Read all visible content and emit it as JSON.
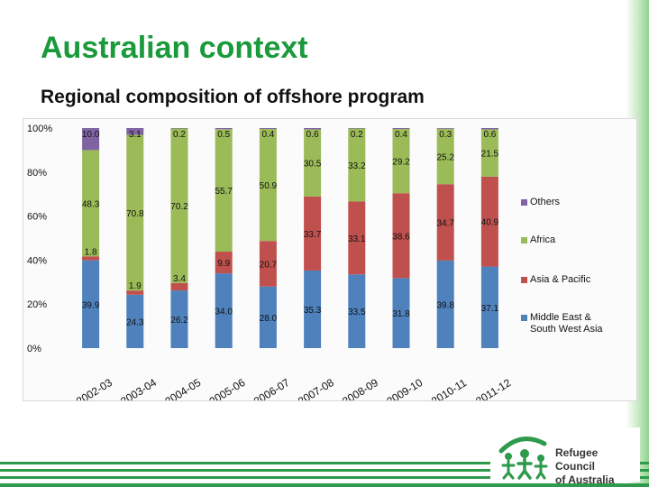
{
  "slide": {
    "title": "Australian context",
    "subtitle": "Regional composition of offshore program"
  },
  "logo": {
    "line1": "Refugee Council",
    "line2": "of Australia"
  },
  "colors": {
    "title_green": "#1a9a3b",
    "footer_green": "#2e9a4b",
    "middle_east": "#4f81bd",
    "asia_pacific": "#c0504d",
    "africa": "#9bbb59",
    "others": "#8064a2"
  },
  "chart_data": {
    "type": "bar",
    "stacked": "100%",
    "categories": [
      "2002-03",
      "2003-04",
      "2004-05",
      "2005-06",
      "2006-07",
      "2007-08",
      "2008-09",
      "2009-10",
      "2010-11",
      "2011-12"
    ],
    "series": [
      {
        "name": "Middle East & South West Asia",
        "color": "#4f81bd",
        "values": [
          39.9,
          24.3,
          26.2,
          34.0,
          28.0,
          35.3,
          33.5,
          31.8,
          39.8,
          37.1
        ]
      },
      {
        "name": "Asia & Pacific",
        "color": "#c0504d",
        "values": [
          1.8,
          1.9,
          3.4,
          9.9,
          20.7,
          33.7,
          33.1,
          38.6,
          34.7,
          40.9
        ]
      },
      {
        "name": "Africa",
        "color": "#9bbb59",
        "values": [
          48.3,
          70.8,
          70.2,
          55.7,
          50.9,
          30.5,
          33.2,
          29.2,
          25.2,
          21.5
        ]
      },
      {
        "name": "Others",
        "color": "#8064a2",
        "values": [
          10.0,
          3.1,
          0.2,
          0.5,
          0.4,
          0.6,
          0.2,
          0.4,
          0.3,
          0.6
        ]
      }
    ],
    "value_labels": {
      "Middle East & South West Asia": [
        "39.9",
        "24.3",
        "26.2",
        "34.0",
        "28.0",
        "35.3",
        "33.5",
        "31.8",
        "39.8",
        "37.1"
      ],
      "Asia & Pacific": [
        "1.8",
        "1.9",
        "3.4",
        "9.9",
        "20.7",
        "33.7",
        "33.1",
        "38.6",
        "34.7",
        "40.9"
      ],
      "Africa": [
        "48.3",
        "70.8",
        "70.2",
        "55.7",
        "50.9",
        "30.5",
        "33.2",
        "29.2",
        "25.2",
        "21.5"
      ],
      "Others": [
        "10.0",
        "3.1",
        "0.2",
        "0.5",
        "0.4",
        "0.6",
        "0.2",
        "0.4",
        "0.3",
        "0.6"
      ]
    },
    "y_ticks": [
      "0%",
      "20%",
      "40%",
      "60%",
      "80%",
      "100%"
    ],
    "ylim": [
      0,
      100
    ],
    "legend": {
      "placement": "right",
      "entries": [
        {
          "label": "Others",
          "color": "#8064a2"
        },
        {
          "label": "Africa",
          "color": "#9bbb59"
        },
        {
          "label": "Asia & Pacific",
          "color": "#c0504d"
        },
        {
          "label": "Middle East &\nSouth West Asia",
          "color": "#4f81bd"
        }
      ]
    },
    "grid": false
  }
}
